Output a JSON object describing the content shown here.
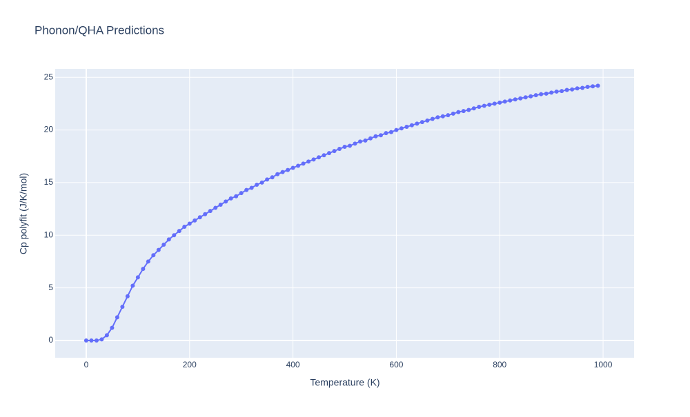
{
  "chart_data": {
    "type": "line",
    "title": "Phonon/QHA Predictions",
    "x_label": "Temperature (K)",
    "y_label": "Cp polyfit (J/K/mol)",
    "x": [
      0,
      10,
      20,
      30,
      40,
      50,
      60,
      70,
      80,
      90,
      100,
      110,
      120,
      130,
      140,
      150,
      160,
      170,
      180,
      190,
      200,
      210,
      220,
      230,
      240,
      250,
      260,
      270,
      280,
      290,
      300,
      310,
      320,
      330,
      340,
      350,
      360,
      370,
      380,
      390,
      400,
      410,
      420,
      430,
      440,
      450,
      460,
      470,
      480,
      490,
      500,
      510,
      520,
      530,
      540,
      550,
      560,
      570,
      580,
      590,
      600,
      610,
      620,
      630,
      640,
      650,
      660,
      670,
      680,
      690,
      700,
      710,
      720,
      730,
      740,
      750,
      760,
      770,
      780,
      790,
      800,
      810,
      820,
      830,
      840,
      850,
      860,
      870,
      880,
      890,
      900,
      910,
      920,
      930,
      940,
      950,
      960,
      970,
      980,
      990
    ],
    "values": [
      0,
      0,
      0,
      0.1,
      0.5,
      1.2,
      2.2,
      3.2,
      4.2,
      5.2,
      6.0,
      6.8,
      7.5,
      8.1,
      8.6,
      9.1,
      9.6,
      10.0,
      10.4,
      10.8,
      11.1,
      11.4,
      11.7,
      12.0,
      12.3,
      12.6,
      12.9,
      13.2,
      13.5,
      13.7,
      14.0,
      14.3,
      14.5,
      14.8,
      15.0,
      15.3,
      15.5,
      15.8,
      16.0,
      16.2,
      16.4,
      16.6,
      16.8,
      17.0,
      17.2,
      17.4,
      17.6,
      17.8,
      18.0,
      18.2,
      18.4,
      18.5,
      18.7,
      18.9,
      19.0,
      19.2,
      19.4,
      19.5,
      19.7,
      19.8,
      20.0,
      20.15,
      20.3,
      20.45,
      20.6,
      20.75,
      20.9,
      21.05,
      21.2,
      21.3,
      21.4,
      21.55,
      21.7,
      21.8,
      21.9,
      22.05,
      22.2,
      22.3,
      22.4,
      22.5,
      22.6,
      22.7,
      22.8,
      22.9,
      23.0,
      23.1,
      23.2,
      23.3,
      23.4,
      23.45,
      23.55,
      23.65,
      23.7,
      23.8,
      23.85,
      23.95,
      24.0,
      24.1,
      24.15,
      24.2
    ],
    "color": "#636efa",
    "xlim": [
      -60,
      1060
    ],
    "xticks": [
      0,
      200,
      400,
      600,
      800,
      1000
    ],
    "ylim": [
      -1.64,
      25.8
    ],
    "yticks": [
      0,
      5,
      10,
      15,
      20,
      25
    ],
    "grid": true
  }
}
